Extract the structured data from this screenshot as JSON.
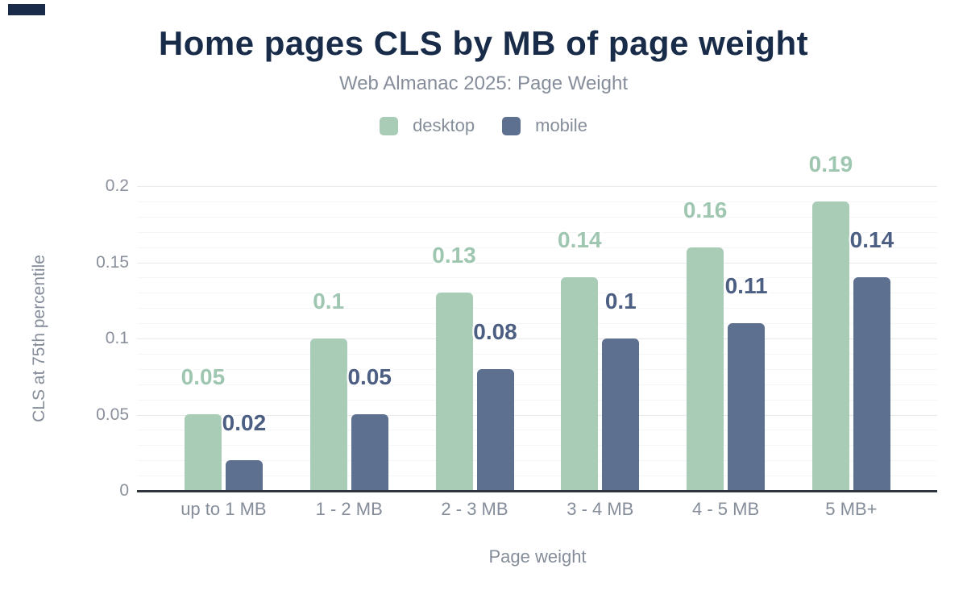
{
  "header": {
    "title": "Home pages CLS by MB of page weight",
    "subtitle": "Web Almanac 2025: Page Weight"
  },
  "legend": {
    "items": [
      {
        "label": "desktop",
        "color": "#a9ccb7"
      },
      {
        "label": "mobile",
        "color": "#5d7090"
      }
    ]
  },
  "colors": {
    "title_navy": "#182b49",
    "text_gray": "#858d9a",
    "axis_line": "#2f353c",
    "grid_major": "#e7e9eb",
    "grid_minor": "#f4f5f6",
    "corner_mark": "#182b49"
  },
  "chart_data": {
    "type": "bar",
    "title": "Home pages CLS by MB of page weight",
    "subtitle": "Web Almanac 2025: Page Weight",
    "categories": [
      "up to 1 MB",
      "1 - 2 MB",
      "2 - 3 MB",
      "3 - 4 MB",
      "4 - 5 MB",
      "5 MB+"
    ],
    "series": [
      {
        "name": "desktop",
        "color": "#a9ccb7",
        "label_color": "#9fc6b0",
        "values": [
          0.05,
          0.1,
          0.13,
          0.14,
          0.16,
          0.19
        ],
        "labels": [
          "0.05",
          "0.1",
          "0.13",
          "0.14",
          "0.16",
          "0.19"
        ]
      },
      {
        "name": "mobile",
        "color": "#5d7090",
        "label_color": "#4c5f83",
        "values": [
          0.02,
          0.05,
          0.08,
          0.1,
          0.11,
          0.14
        ],
        "labels": [
          "0.02",
          "0.05",
          "0.08",
          "0.1",
          "0.11",
          "0.14"
        ]
      }
    ],
    "xlabel": "Page weight",
    "ylabel": "CLS at 75th percentile",
    "ylim": [
      0,
      0.2
    ],
    "yticks": [
      {
        "v": 0,
        "label": "0"
      },
      {
        "v": 0.05,
        "label": "0.05"
      },
      {
        "v": 0.1,
        "label": "0.1"
      },
      {
        "v": 0.15,
        "label": "0.15"
      },
      {
        "v": 0.2,
        "label": "0.2"
      }
    ],
    "grid": {
      "major_every": 0.05,
      "minor_every": 0.01,
      "vertical": false
    },
    "legend_position": "top"
  }
}
